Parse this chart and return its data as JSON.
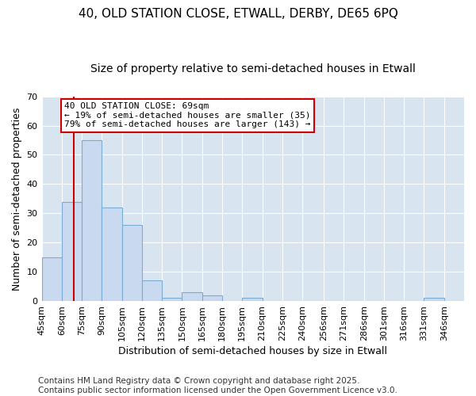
{
  "title1": "40, OLD STATION CLOSE, ETWALL, DERBY, DE65 6PQ",
  "title2": "Size of property relative to semi-detached houses in Etwall",
  "xlabel": "Distribution of semi-detached houses by size in Etwall",
  "ylabel": "Number of semi-detached properties",
  "bin_labels": [
    "45sqm",
    "60sqm",
    "75sqm",
    "90sqm",
    "105sqm",
    "120sqm",
    "135sqm",
    "150sqm",
    "165sqm",
    "180sqm",
    "195sqm",
    "210sqm",
    "225sqm",
    "240sqm",
    "256sqm",
    "271sqm",
    "286sqm",
    "301sqm",
    "316sqm",
    "331sqm",
    "346sqm"
  ],
  "bin_edges": [
    45,
    60,
    75,
    90,
    105,
    120,
    135,
    150,
    165,
    180,
    195,
    210,
    225,
    240,
    256,
    271,
    286,
    301,
    316,
    331,
    346,
    361
  ],
  "bar_values": [
    15,
    34,
    55,
    32,
    26,
    7,
    1,
    3,
    2,
    0,
    1,
    0,
    0,
    0,
    0,
    0,
    0,
    0,
    0,
    1,
    0
  ],
  "bar_color": "#c8d9f0",
  "bar_edgecolor": "#7aadd4",
  "vline_x": 69,
  "vline_color": "#cc0000",
  "annotation_text": "40 OLD STATION CLOSE: 69sqm\n← 19% of semi-detached houses are smaller (35)\n79% of semi-detached houses are larger (143) →",
  "annotation_box_facecolor": "#ffffff",
  "annotation_box_edgecolor": "#cc0000",
  "ylim": [
    0,
    70
  ],
  "yticks": [
    0,
    10,
    20,
    30,
    40,
    50,
    60,
    70
  ],
  "fig_bg_color": "#ffffff",
  "plot_bg_color": "#d8e4f0",
  "grid_color": "#ffffff",
  "footer_text": "Contains HM Land Registry data © Crown copyright and database right 2025.\nContains public sector information licensed under the Open Government Licence v3.0.",
  "title1_fontsize": 11,
  "title2_fontsize": 10,
  "xlabel_fontsize": 9,
  "ylabel_fontsize": 9,
  "tick_fontsize": 8,
  "annot_fontsize": 8,
  "footer_fontsize": 7.5
}
